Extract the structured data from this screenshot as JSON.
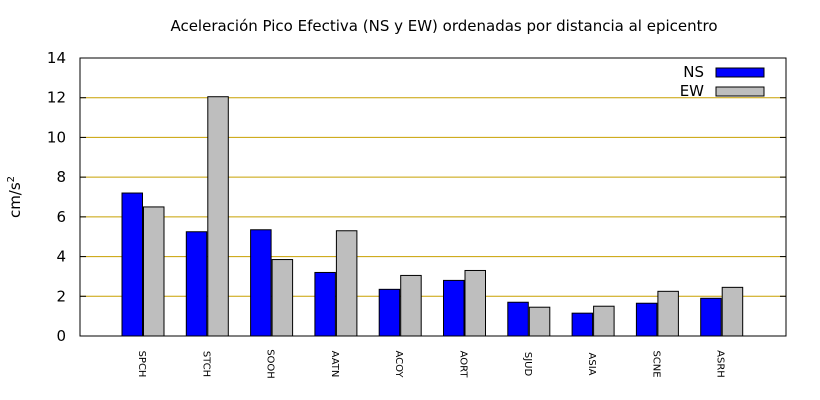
{
  "chart_data": {
    "type": "bar",
    "title": "Aceleración Pico Efectiva (NS y EW) ordenadas por distancia al epicentro",
    "ylabel": "cm/s",
    "ylabel_sup": "2",
    "xlabel": "",
    "ylim": [
      0,
      14
    ],
    "yticks": [
      0,
      2,
      4,
      6,
      8,
      10,
      12,
      14
    ],
    "grid": true,
    "legend_position": "top-right",
    "categories": [
      "SPCH",
      "STCH",
      "SOOH",
      "AATN",
      "ACOY",
      "AORT",
      "SJUD",
      "ASIA",
      "SCNE",
      "ASRH"
    ],
    "series": [
      {
        "name": "NS",
        "color": "#0000ff",
        "values": [
          7.2,
          5.25,
          5.35,
          3.2,
          2.35,
          2.8,
          1.7,
          1.15,
          1.65,
          1.9
        ]
      },
      {
        "name": "EW",
        "color": "#bebebe",
        "values": [
          6.5,
          12.05,
          3.85,
          5.3,
          3.05,
          3.3,
          1.45,
          1.5,
          2.25,
          2.45
        ]
      }
    ],
    "grid_color": "#c8a000"
  }
}
